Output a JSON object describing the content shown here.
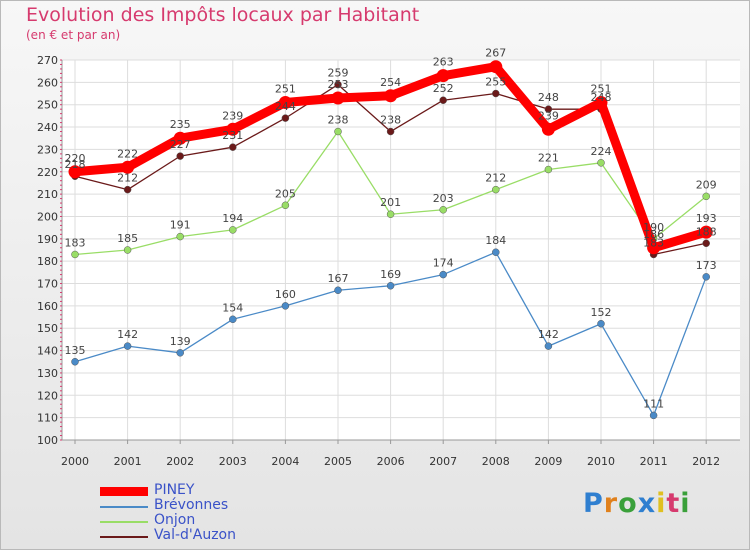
{
  "title": "Evolution des Impôts locaux par Habitant",
  "subtitle": "(en € et par an)",
  "chart_data": {
    "type": "line",
    "title": "Evolution des Impôts locaux par Habitant",
    "ylabel": "(en € et par an)",
    "xlabel": "",
    "ylim": [
      100,
      270
    ],
    "yticks": [
      100,
      110,
      120,
      130,
      140,
      150,
      160,
      170,
      180,
      190,
      200,
      210,
      220,
      230,
      240,
      250,
      260,
      270
    ],
    "categories": [
      "2000",
      "2001",
      "2002",
      "2003",
      "2004",
      "2005",
      "2006",
      "2007",
      "2008",
      "2009",
      "2010",
      "2011",
      "2012"
    ],
    "grid": true,
    "legend_position": "bottom-left",
    "series": [
      {
        "name": "Brévonnes",
        "color": "#4a8ac7",
        "values": [
          135,
          142,
          139,
          154,
          160,
          167,
          169,
          174,
          184,
          142,
          152,
          111,
          173
        ]
      },
      {
        "name": "Onjon",
        "color": "#99dd66",
        "values": [
          183,
          185,
          191,
          194,
          205,
          238,
          201,
          203,
          212,
          221,
          224,
          190,
          209
        ]
      },
      {
        "name": "Val-d'Auzon",
        "color": "#6b1a1a",
        "values": [
          218,
          212,
          227,
          231,
          244,
          259,
          238,
          252,
          255,
          248,
          248,
          183,
          188
        ]
      },
      {
        "name": "PINEY",
        "color": "#ff0000",
        "values": [
          220,
          222,
          235,
          239,
          251,
          253,
          254,
          263,
          267,
          239,
          251,
          186,
          193
        ]
      }
    ]
  },
  "legend": {
    "items": [
      {
        "label": "PINEY",
        "color": "#ff0000"
      },
      {
        "label": "Brévonnes",
        "color": "#4a8ac7"
      },
      {
        "label": "Onjon",
        "color": "#99dd66"
      },
      {
        "label": "Val-d'Auzon",
        "color": "#6b1a1a"
      }
    ]
  },
  "logo": {
    "letters": [
      "P",
      "r",
      "o",
      "x",
      "i",
      "t",
      "i"
    ],
    "colors": [
      "#2f7fd0",
      "#e0801c",
      "#3aa03a",
      "#2f7fd0",
      "#e0c020",
      "#d63a6e",
      "#3aa03a"
    ]
  }
}
